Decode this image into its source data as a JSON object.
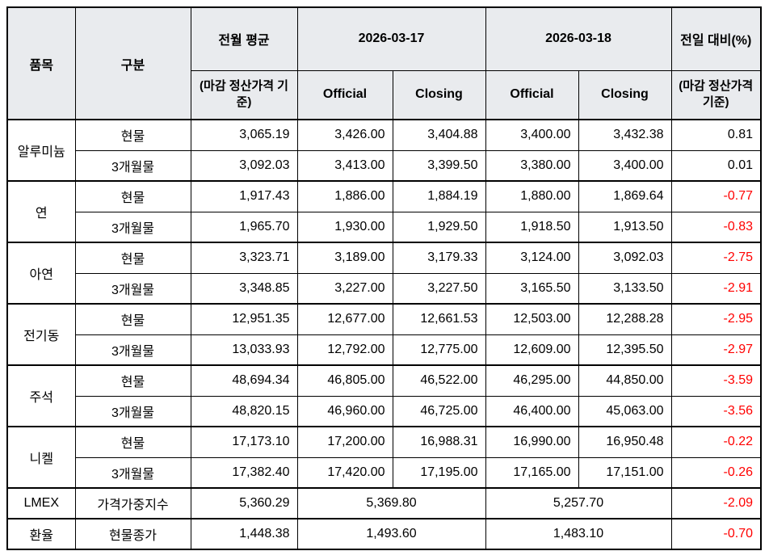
{
  "colors": {
    "negative": "#ff0000",
    "text": "#000000",
    "header_bg": "#e9ebee",
    "border": "#000000"
  },
  "table": {
    "header": {
      "item": "품목",
      "category": "구분",
      "prev_avg": "전월 평균",
      "prev_avg_sub": "(마감 정산가격 기준)",
      "date1": "2026-03-17",
      "date2": "2026-03-18",
      "official": "Official",
      "closing": "Closing",
      "change": "전일 대비(%)",
      "change_sub": "(마감 정산가격 기준)"
    },
    "groups": [
      {
        "item": "알루미늄",
        "rows": [
          {
            "category": "현물",
            "values": [
              "3,065.19",
              "3,426.00",
              "3,404.88",
              "3,400.00",
              "3,432.38",
              "0.81"
            ]
          },
          {
            "category": "3개월물",
            "values": [
              "3,092.03",
              "3,413.00",
              "3,399.50",
              "3,380.00",
              "3,400.00",
              "0.01"
            ]
          }
        ]
      },
      {
        "item": "연",
        "rows": [
          {
            "category": "현물",
            "values": [
              "1,917.43",
              "1,886.00",
              "1,884.19",
              "1,880.00",
              "1,869.64",
              "-0.77"
            ]
          },
          {
            "category": "3개월물",
            "values": [
              "1,965.70",
              "1,930.00",
              "1,929.50",
              "1,918.50",
              "1,913.50",
              "-0.83"
            ]
          }
        ]
      },
      {
        "item": "아연",
        "rows": [
          {
            "category": "현물",
            "values": [
              "3,323.71",
              "3,189.00",
              "3,179.33",
              "3,124.00",
              "3,092.03",
              "-2.75"
            ]
          },
          {
            "category": "3개월물",
            "values": [
              "3,348.85",
              "3,227.00",
              "3,227.50",
              "3,165.50",
              "3,133.50",
              "-2.91"
            ]
          }
        ]
      },
      {
        "item": "전기동",
        "rows": [
          {
            "category": "현물",
            "values": [
              "12,951.35",
              "12,677.00",
              "12,661.53",
              "12,503.00",
              "12,288.28",
              "-2.95"
            ]
          },
          {
            "category": "3개월물",
            "values": [
              "13,033.93",
              "12,792.00",
              "12,775.00",
              "12,609.00",
              "12,395.50",
              "-2.97"
            ]
          }
        ]
      },
      {
        "item": "주석",
        "rows": [
          {
            "category": "현물",
            "values": [
              "48,694.34",
              "46,805.00",
              "46,522.00",
              "46,295.00",
              "44,850.00",
              "-3.59"
            ]
          },
          {
            "category": "3개월물",
            "values": [
              "48,820.15",
              "46,960.00",
              "46,725.00",
              "46,400.00",
              "45,063.00",
              "-3.56"
            ]
          }
        ]
      },
      {
        "item": "니켈",
        "rows": [
          {
            "category": "현물",
            "values": [
              "17,173.10",
              "17,200.00",
              "16,988.31",
              "16,990.00",
              "16,950.48",
              "-0.22"
            ]
          },
          {
            "category": "3개월물",
            "values": [
              "17,382.40",
              "17,420.00",
              "17,195.00",
              "17,165.00",
              "17,151.00",
              "-0.26"
            ]
          }
        ]
      }
    ],
    "summary_rows": [
      {
        "item": "LMEX",
        "category": "가격가중지수",
        "prev_avg": "5,360.29",
        "date1_value": "5,369.80",
        "date2_value": "5,257.70",
        "change": "-2.09"
      },
      {
        "item": "환율",
        "category": "현물종가",
        "prev_avg": "1,448.38",
        "date1_value": "1,493.60",
        "date2_value": "1,483.10",
        "change": "-0.70"
      }
    ]
  }
}
